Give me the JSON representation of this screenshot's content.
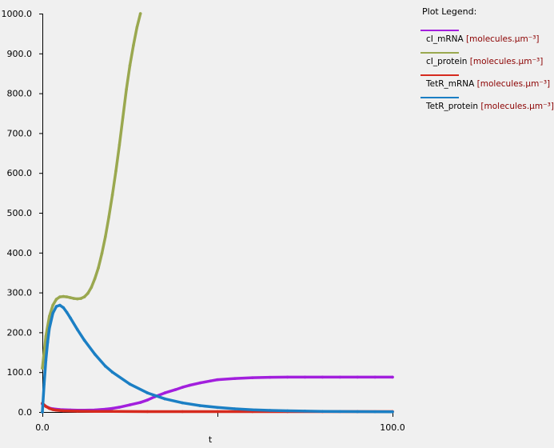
{
  "chart_data": {
    "type": "line",
    "xlabel": "t",
    "ylabel": "",
    "xlim": [
      0,
      100
    ],
    "ylim": [
      0,
      1000
    ],
    "x_ticks": [
      "0.0",
      "100.0"
    ],
    "y_ticks": [
      "0.0",
      "100.0",
      "200.0",
      "300.0",
      "400.0",
      "500.0",
      "600.0",
      "700.0",
      "800.0",
      "900.0",
      "1000.0"
    ],
    "legend_title": "Plot Legend:",
    "legend_position": "right",
    "series": [
      {
        "name": "cI_mRNA",
        "unit": "[molecules.µm⁻³]",
        "color": "#a21fdd",
        "x": [
          0,
          1,
          2,
          3,
          5,
          8,
          10,
          12,
          15,
          18,
          20,
          22,
          25,
          28,
          30,
          32,
          35,
          38,
          40,
          42,
          45,
          48,
          50,
          55,
          60,
          65,
          70,
          75,
          80,
          85,
          90,
          95,
          100
        ],
        "y": [
          20,
          14,
          10,
          8,
          6,
          5,
          4.5,
          4.5,
          5,
          7,
          9,
          12,
          18,
          24,
          30,
          38,
          48,
          56,
          62,
          67,
          73,
          78,
          81,
          84,
          86,
          87,
          87.5,
          87.5,
          87.5,
          87.5,
          87.5,
          87.5,
          87.5
        ]
      },
      {
        "name": "cI_protein",
        "unit": "[molecules.µm⁻³]",
        "color": "#9aa84f",
        "x": [
          0,
          1,
          2,
          3,
          4,
          5,
          6,
          7,
          8,
          9,
          10,
          11,
          12,
          13,
          14,
          15,
          16,
          17,
          18,
          19,
          20,
          21,
          22,
          23,
          24,
          25,
          26,
          27,
          28
        ],
        "y": [
          110,
          190,
          240,
          268,
          283,
          289,
          290,
          289,
          287,
          285,
          284,
          285,
          289,
          298,
          313,
          335,
          362,
          398,
          440,
          490,
          545,
          605,
          670,
          740,
          810,
          870,
          920,
          965,
          1000
        ]
      },
      {
        "name": "TetR_mRNA",
        "unit": "[molecules.µm⁻³]",
        "color": "#d62a1e",
        "x": [
          0,
          1,
          2,
          3,
          4,
          6,
          8,
          10,
          15,
          20,
          30,
          40,
          50,
          60,
          70,
          80,
          90,
          100
        ],
        "y": [
          22,
          14,
          9,
          6,
          4.5,
          3,
          2.5,
          2,
          1.5,
          1.5,
          1,
          1,
          1,
          1,
          1,
          1,
          1,
          1
        ]
      },
      {
        "name": "TetR_protein",
        "unit": "[molecules.µm⁻³]",
        "color": "#1b7fc4",
        "x": [
          0,
          0.5,
          1,
          1.5,
          2,
          3,
          4,
          5,
          6,
          7,
          8,
          10,
          12,
          15,
          18,
          20,
          25,
          30,
          35,
          40,
          45,
          50,
          55,
          60,
          65,
          70,
          75,
          80,
          85,
          90,
          95,
          100
        ],
        "y": [
          0,
          70,
          130,
          175,
          210,
          248,
          265,
          268,
          262,
          250,
          236,
          207,
          180,
          145,
          115,
          100,
          70,
          48,
          33,
          23,
          16,
          11.5,
          8,
          5.5,
          4,
          3,
          2.2,
          1.6,
          1.2,
          0.9,
          0.7,
          0.5
        ]
      }
    ]
  }
}
